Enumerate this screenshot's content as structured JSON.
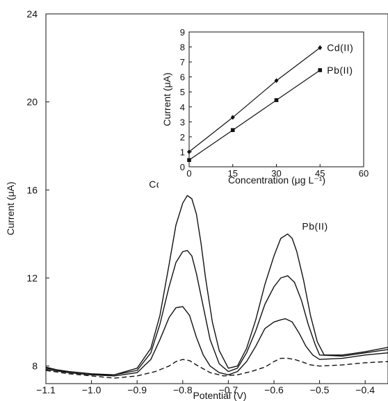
{
  "chart_data": [
    {
      "type": "line",
      "xlabel": "Potential (V)",
      "ylabel": "Current (μA)",
      "xlim": [
        -1.1,
        -0.35
      ],
      "ylim": [
        7.2,
        24
      ],
      "xticks": [
        -1.1,
        -1.0,
        -0.9,
        -0.8,
        -0.7,
        -0.6,
        -0.5,
        -0.4
      ],
      "xtick_labels": [
        "−1.1",
        "−1.0",
        "−0.9",
        "−0.8",
        "−0.7",
        "−0.6",
        "−0.5",
        "−0.4"
      ],
      "yticks": [
        8,
        12,
        16,
        20,
        24
      ],
      "ytick_labels": [
        "8",
        "12",
        "16",
        "20",
        "24"
      ],
      "annotations": [
        {
          "text": "Cd(II)",
          "x": -0.845,
          "y": 16.1
        },
        {
          "text": "Pb(II)",
          "x": -0.51,
          "y": 14.2
        }
      ],
      "series": [
        {
          "style": "dashed",
          "x": [
            -1.1,
            -1.05,
            -1.0,
            -0.95,
            -0.9,
            -0.86,
            -0.83,
            -0.815,
            -0.8,
            -0.785,
            -0.77,
            -0.74,
            -0.71,
            -0.68,
            -0.65,
            -0.62,
            -0.6,
            -0.585,
            -0.57,
            -0.555,
            -0.54,
            -0.52,
            -0.5,
            -0.45,
            -0.4,
            -0.35
          ],
          "y": [
            7.8,
            7.65,
            7.55,
            7.45,
            7.55,
            7.75,
            8.0,
            8.2,
            8.3,
            8.25,
            8.05,
            7.7,
            7.55,
            7.6,
            7.75,
            7.95,
            8.2,
            8.35,
            8.35,
            8.3,
            8.2,
            8.05,
            8.0,
            8.05,
            8.15,
            8.2
          ]
        },
        {
          "style": "solid",
          "x": [
            -1.1,
            -1.05,
            -1.0,
            -0.95,
            -0.9,
            -0.87,
            -0.85,
            -0.83,
            -0.815,
            -0.8,
            -0.785,
            -0.77,
            -0.755,
            -0.74,
            -0.72,
            -0.7,
            -0.68,
            -0.66,
            -0.64,
            -0.62,
            -0.6,
            -0.585,
            -0.575,
            -0.56,
            -0.545,
            -0.53,
            -0.515,
            -0.5,
            -0.45,
            -0.4,
            -0.35
          ],
          "y": [
            7.85,
            7.7,
            7.6,
            7.55,
            7.7,
            8.3,
            9.2,
            10.2,
            10.65,
            10.7,
            10.3,
            9.3,
            8.5,
            8.0,
            7.7,
            7.6,
            7.75,
            8.2,
            8.9,
            9.7,
            10.0,
            10.1,
            10.15,
            10.0,
            9.5,
            8.9,
            8.5,
            8.3,
            8.35,
            8.5,
            8.6
          ]
        },
        {
          "style": "solid",
          "x": [
            -1.1,
            -1.05,
            -1.0,
            -0.95,
            -0.9,
            -0.87,
            -0.85,
            -0.83,
            -0.815,
            -0.8,
            -0.79,
            -0.78,
            -0.77,
            -0.755,
            -0.74,
            -0.72,
            -0.7,
            -0.68,
            -0.66,
            -0.64,
            -0.62,
            -0.6,
            -0.585,
            -0.57,
            -0.555,
            -0.54,
            -0.525,
            -0.51,
            -0.5,
            -0.45,
            -0.4,
            -0.35
          ],
          "y": [
            7.9,
            7.75,
            7.65,
            7.6,
            7.8,
            8.6,
            9.9,
            11.6,
            12.7,
            13.2,
            13.25,
            13.0,
            12.2,
            10.7,
            9.2,
            8.1,
            7.75,
            7.9,
            8.6,
            9.6,
            10.8,
            11.6,
            12.0,
            12.1,
            11.8,
            11.0,
            9.9,
            9.0,
            8.5,
            8.45,
            8.6,
            8.75
          ]
        },
        {
          "style": "solid",
          "x": [
            -1.1,
            -1.05,
            -1.0,
            -0.95,
            -0.9,
            -0.87,
            -0.85,
            -0.83,
            -0.815,
            -0.8,
            -0.79,
            -0.78,
            -0.77,
            -0.76,
            -0.75,
            -0.735,
            -0.72,
            -0.7,
            -0.68,
            -0.66,
            -0.64,
            -0.62,
            -0.6,
            -0.585,
            -0.57,
            -0.56,
            -0.55,
            -0.535,
            -0.52,
            -0.505,
            -0.49,
            -0.45,
            -0.4,
            -0.35
          ],
          "y": [
            7.95,
            7.7,
            7.6,
            7.6,
            7.9,
            8.8,
            10.3,
            12.6,
            14.4,
            15.4,
            15.75,
            15.6,
            14.9,
            13.6,
            12.0,
            10.0,
            8.7,
            7.9,
            8.0,
            8.8,
            10.1,
            11.7,
            13.0,
            13.8,
            14.0,
            13.8,
            13.2,
            11.9,
            10.3,
            9.1,
            8.5,
            8.5,
            8.65,
            8.85
          ]
        }
      ]
    },
    {
      "type": "line",
      "xlabel": "Concentration (μg L⁻¹)",
      "ylabel": "Current (μA)",
      "xlim": [
        0,
        60
      ],
      "ylim": [
        0,
        9
      ],
      "xticks": [
        0,
        15,
        30,
        45,
        60
      ],
      "xtick_labels": [
        "0",
        "15",
        "30",
        "45",
        "60"
      ],
      "yticks": [
        0,
        1,
        2,
        3,
        4,
        5,
        6,
        7,
        8,
        9
      ],
      "ytick_labels": [
        "0",
        "1",
        "2",
        "3",
        "4",
        "5",
        "6",
        "7",
        "8",
        "9"
      ],
      "legend_position": "right",
      "series": [
        {
          "name": "Cd(II)",
          "marker": "diamond",
          "x": [
            0,
            15,
            30,
            45
          ],
          "y": [
            1.0,
            3.3,
            5.75,
            7.95
          ]
        },
        {
          "name": "Pb(II)",
          "marker": "square",
          "x": [
            0,
            15,
            30,
            45
          ],
          "y": [
            0.45,
            2.45,
            4.45,
            6.45
          ]
        }
      ]
    }
  ]
}
